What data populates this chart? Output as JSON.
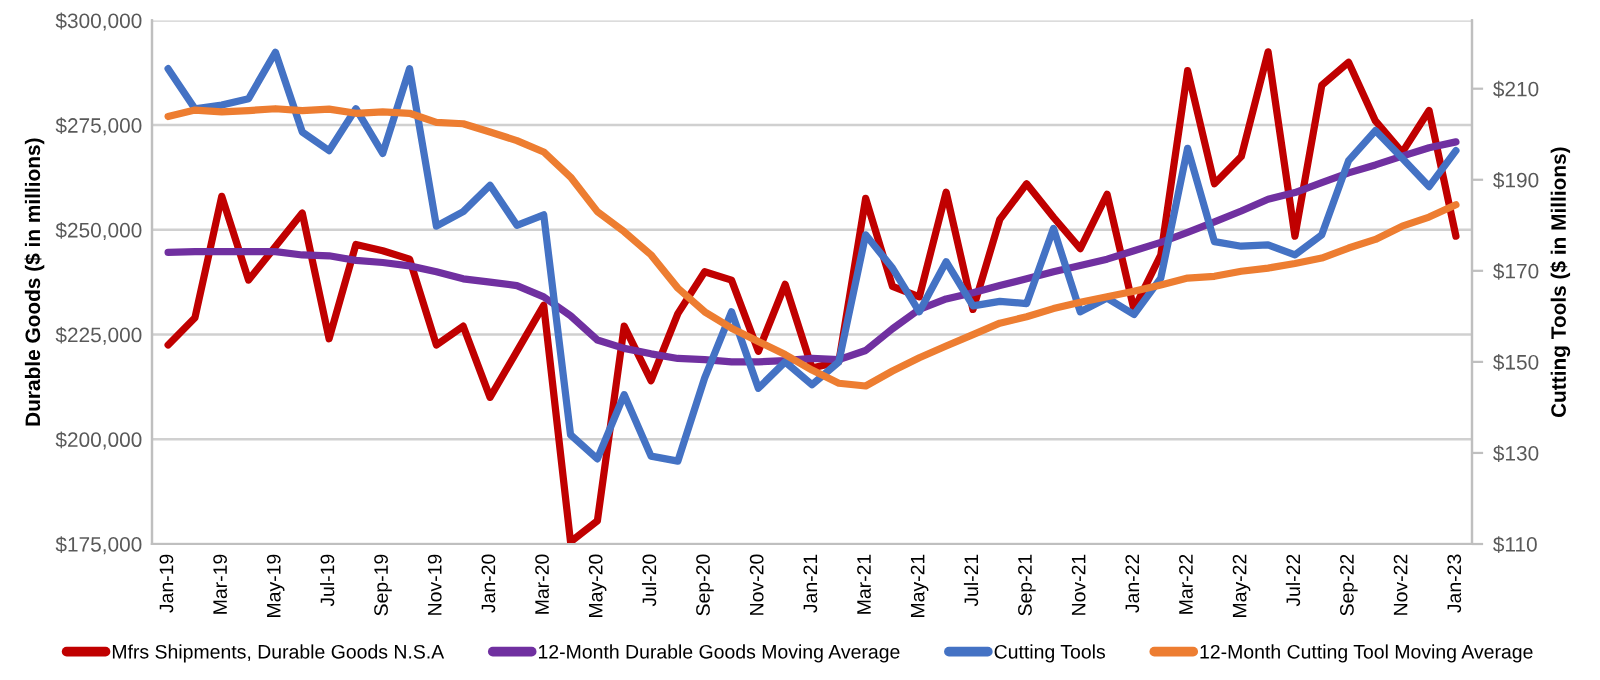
{
  "chart_data": {
    "type": "line",
    "ylabel": "Durable Goods ($ in millions)",
    "y2label": "Cutting Tools ($ in Millions)",
    "categories": [
      "Jan-19",
      null,
      "Mar-19",
      null,
      "May-19",
      null,
      "Jul-19",
      null,
      "Sep-19",
      null,
      "Nov-19",
      null,
      "Jan-20",
      null,
      "Mar-20",
      null,
      "May-20",
      null,
      "Jul-20",
      null,
      "Sep-20",
      null,
      "Nov-20",
      null,
      "Jan-21",
      null,
      "Mar-21",
      null,
      "May-21",
      null,
      "Jul-21",
      null,
      "Sep-21",
      null,
      "Nov-21",
      null,
      "Jan-22",
      null,
      "Mar-22",
      null,
      "May-22",
      null,
      "Jul-22",
      null,
      "Sep-22",
      null,
      "Nov-22",
      null,
      "Jan-23"
    ],
    "series": [
      {
        "name": "Mfrs Shipments, Durable Goods N.S.A",
        "color": "#c00000",
        "values": [
          222500,
          229000,
          258000,
          238000,
          246000,
          254000,
          224000,
          246500,
          245000,
          243000,
          222500,
          227000,
          210000,
          221000,
          232000,
          175500,
          180500,
          227000,
          214000,
          230000,
          240000,
          238000,
          221000,
          237000,
          217000,
          218500,
          257500,
          236500,
          234000,
          259000,
          231000,
          252500,
          261000,
          253000,
          245500,
          258500,
          231000,
          244000,
          288000,
          261000,
          267500,
          292500,
          248500,
          284500,
          290000,
          276000,
          268500,
          278500,
          248500
        ]
      },
      {
        "name": "12-Month Durable Goods Moving Average",
        "color": "#7030a0",
        "values": [
          244600,
          244800,
          244800,
          244800,
          244800,
          244000,
          243800,
          242700,
          242200,
          241400,
          240000,
          238300,
          237500,
          236700,
          234000,
          229500,
          223700,
          221700,
          220400,
          219300,
          219000,
          218500,
          218500,
          218800,
          219300,
          219000,
          221200,
          226400,
          231000,
          233500,
          235000,
          236700,
          238300,
          240000,
          241500,
          243000,
          245000,
          247000,
          249400,
          251900,
          254500,
          257300,
          258900,
          261300,
          263600,
          265500,
          267600,
          269600,
          271000
        ]
      },
      {
        "name": "Cutting Tools",
        "color": "#4472c4",
        "axis": "y2",
        "values": [
          214.4,
          205.6,
          206.4,
          207.8,
          218,
          200.5,
          196.4,
          205.6,
          195.8,
          214.4,
          179.8,
          183,
          188.8,
          180,
          182.3,
          134,
          128.7,
          142.8,
          129.3,
          128.2,
          146.5,
          161,
          144.2,
          150,
          145,
          150,
          177.9,
          170.6,
          161,
          172,
          162.3,
          163.3,
          162.8,
          179.3,
          161,
          164,
          160.4,
          168.4,
          196.9,
          176.4,
          175.4,
          175.7,
          173.5,
          177.9,
          194.2,
          200.8,
          194.7,
          188.5,
          196.4
        ]
      },
      {
        "name": "12-Month Cutting Tool Moving Average",
        "color": "#ed7d31",
        "axis": "y2",
        "values": [
          203.9,
          205.3,
          204.9,
          205.2,
          205.6,
          205.2,
          205.5,
          204.6,
          204.9,
          204.6,
          202.6,
          202.3,
          200.5,
          198.6,
          196.1,
          190.6,
          183,
          178.6,
          173.5,
          166.2,
          161,
          157.4,
          154.5,
          151.6,
          148.2,
          145.3,
          144.7,
          148,
          150.9,
          153.5,
          156,
          158.5,
          159.9,
          161.7,
          163.1,
          164.3,
          165.5,
          166.9,
          168.4,
          168.8,
          169.9,
          170.6,
          171.6,
          172.8,
          175,
          176.9,
          179.8,
          181.8,
          184.5
        ]
      }
    ],
    "ylim": [
      175000,
      300000
    ],
    "yticks": [
      {
        "value": 175000,
        "label": "$175,000"
      },
      {
        "value": 200000,
        "label": "$200,000"
      },
      {
        "value": 225000,
        "label": "$225,000"
      },
      {
        "value": 250000,
        "label": "$250,000"
      },
      {
        "value": 275000,
        "label": "$275,000"
      },
      {
        "value": 300000,
        "label": "$300,000"
      }
    ],
    "y2lim": [
      110,
      225
    ],
    "y2ticks": [
      {
        "value": 110,
        "label": "$110"
      },
      {
        "value": 130,
        "label": "$130"
      },
      {
        "value": 150,
        "label": "$150"
      },
      {
        "value": 170,
        "label": "$170"
      },
      {
        "value": 190,
        "label": "$190"
      },
      {
        "value": 210,
        "label": "$210"
      }
    ],
    "grid": "y",
    "legend": "bottom",
    "marker": "none",
    "line_style": "solid"
  }
}
